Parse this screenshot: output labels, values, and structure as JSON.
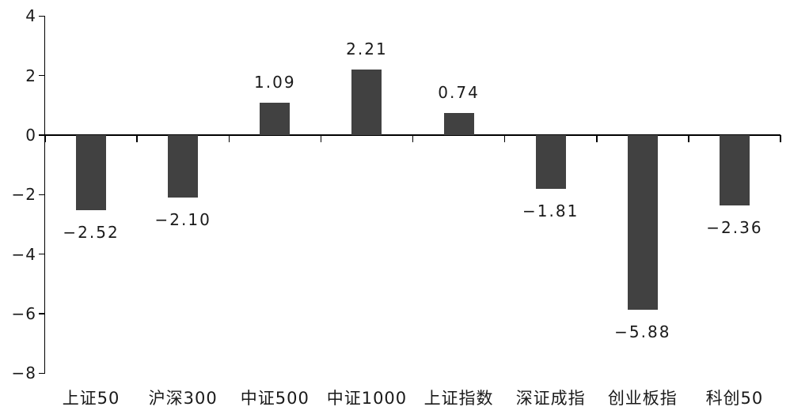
{
  "chart_data": {
    "type": "bar",
    "title": "",
    "xlabel": "",
    "ylabel": "",
    "categories": [
      "上证50",
      "沪深300",
      "中证500",
      "中证1000",
      "上证指数",
      "深证成指",
      "创业板指",
      "科创50"
    ],
    "values": [
      -2.52,
      -2.1,
      1.09,
      2.21,
      0.74,
      -1.81,
      -5.88,
      -2.36
    ],
    "value_labels": [
      "−2.52",
      "−2.10",
      "1.09",
      "2.21",
      "0.74",
      "−1.81",
      "−5.88",
      "−2.36"
    ],
    "y_ticks": [
      4,
      2,
      0,
      -2,
      -4,
      -6,
      -8
    ],
    "y_tick_labels": [
      "4",
      "2",
      "0",
      "−2",
      "−4",
      "−6",
      "−8"
    ],
    "ylim": [
      -8,
      4
    ],
    "grid": false,
    "legend_position": "none",
    "colors": {
      "bar": "#414141",
      "axis": "#000000",
      "text": "#1a1a1a",
      "background": "#ffffff"
    }
  }
}
